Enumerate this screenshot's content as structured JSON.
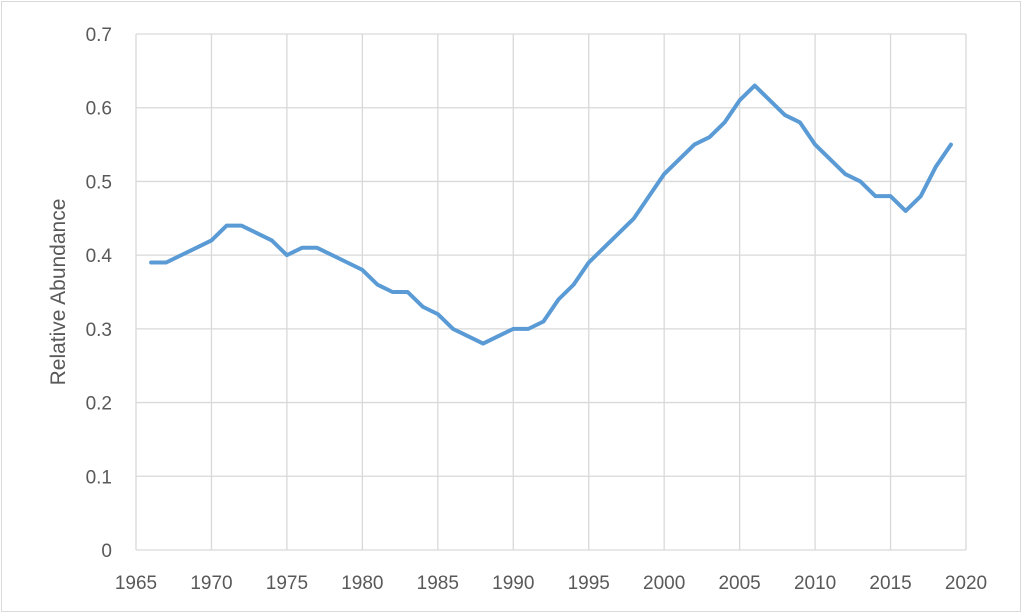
{
  "chart_data": {
    "type": "line",
    "title": "",
    "xlabel": "",
    "ylabel": "Relative Abundance",
    "xlim": [
      1965,
      2020
    ],
    "ylim": [
      0,
      0.7
    ],
    "xticks": [
      1965,
      1970,
      1975,
      1980,
      1985,
      1990,
      1995,
      2000,
      2005,
      2010,
      2015,
      2020
    ],
    "yticks": [
      0,
      0.1,
      0.2,
      0.3,
      0.4,
      0.5,
      0.6,
      0.7
    ],
    "ytick_labels": [
      "0",
      "0.1",
      "0.2",
      "0.3",
      "0.4",
      "0.5",
      "0.6",
      "0.7"
    ],
    "grid": true,
    "legend": "none",
    "series": [
      {
        "color": "#5b9bd5",
        "x": [
          1966,
          1967,
          1968,
          1969,
          1970,
          1971,
          1972,
          1973,
          1974,
          1975,
          1976,
          1977,
          1978,
          1979,
          1980,
          1981,
          1982,
          1983,
          1984,
          1985,
          1986,
          1987,
          1988,
          1989,
          1990,
          1991,
          1992,
          1993,
          1994,
          1995,
          1996,
          1997,
          1998,
          1999,
          2000,
          2001,
          2002,
          2003,
          2004,
          2005,
          2006,
          2007,
          2008,
          2009,
          2010,
          2011,
          2012,
          2013,
          2014,
          2015,
          2016,
          2017,
          2018,
          2019
        ],
        "y": [
          0.39,
          0.39,
          0.4,
          0.41,
          0.42,
          0.44,
          0.44,
          0.43,
          0.42,
          0.4,
          0.41,
          0.41,
          0.4,
          0.39,
          0.38,
          0.36,
          0.35,
          0.35,
          0.33,
          0.32,
          0.3,
          0.29,
          0.28,
          0.29,
          0.3,
          0.3,
          0.31,
          0.34,
          0.36,
          0.39,
          0.41,
          0.43,
          0.45,
          0.48,
          0.51,
          0.53,
          0.55,
          0.56,
          0.58,
          0.61,
          0.63,
          0.61,
          0.59,
          0.58,
          0.55,
          0.53,
          0.51,
          0.5,
          0.48,
          0.48,
          0.46,
          0.48,
          0.52,
          0.55
        ]
      }
    ]
  }
}
